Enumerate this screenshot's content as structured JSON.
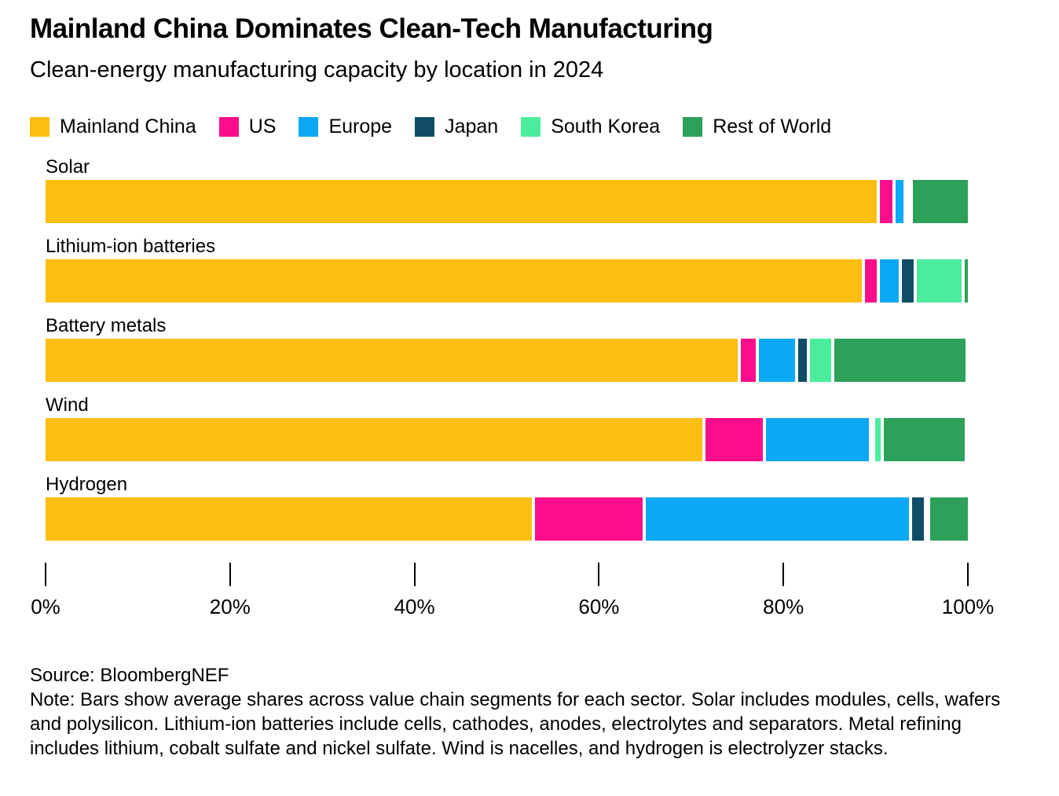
{
  "header": {
    "title": "Mainland China Dominates Clean-Tech Manufacturing",
    "subtitle": "Clean-energy manufacturing capacity by location in 2024"
  },
  "chart_data": {
    "type": "bar",
    "orientation": "horizontal",
    "stacked": true,
    "unit": "percent",
    "grid": false,
    "legend_position": "top",
    "series_names": [
      "Mainland China",
      "US",
      "Europe",
      "Japan",
      "South Korea",
      "Rest of World"
    ],
    "series_colors": [
      "#FCBE11",
      "#FC0D8C",
      "#0BA8F5",
      "#0F4D66",
      "#4CEC9D",
      "#2DA05A"
    ],
    "categories": [
      "Solar",
      "Lithium-ion batteries",
      "Battery metals",
      "Wind",
      "Hydrogen"
    ],
    "series": [
      {
        "name": "Mainland China",
        "values": [
          90.4,
          88.5,
          75.0,
          71.2,
          52.7
        ]
      },
      {
        "name": "US",
        "values": [
          1.4,
          1.3,
          1.7,
          6.2,
          11.7
        ]
      },
      {
        "name": "Europe",
        "values": [
          0.8,
          2.0,
          3.9,
          11.2,
          28.5
        ]
      },
      {
        "name": "Japan",
        "values": [
          0,
          1.3,
          0.9,
          0,
          1.3
        ]
      },
      {
        "name": "South Korea",
        "values": [
          0,
          4.9,
          2.3,
          0.6,
          0
        ]
      },
      {
        "name": "Rest of World",
        "values": [
          6.0,
          0.3,
          14.2,
          8.8,
          4.1
        ]
      }
    ],
    "x_ticks": [
      "0%",
      "20%",
      "40%",
      "60%",
      "80%",
      "100%"
    ],
    "xlim": [
      0,
      100
    ]
  },
  "footer": {
    "source": "Source: BloombergNEF",
    "note": "Note: Bars show average shares across value chain segments for each sector. Solar includes modules, cells, wafers and polysilicon. Lithium-ion batteries include cells, cathodes, anodes, electrolytes and separators. Metal refining includes lithium, cobalt sulfate and nickel sulfate. Wind is nacelles, and hydrogen is electrolyzer stacks."
  }
}
